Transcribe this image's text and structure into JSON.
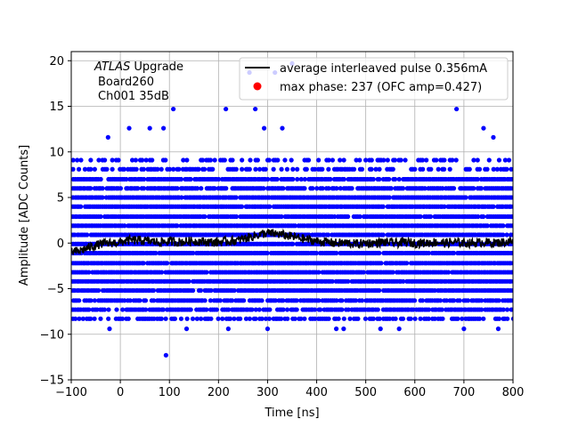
{
  "chart_data": {
    "type": "scatter",
    "xlabel": "Time [ns]",
    "ylabel": "Amplitude [ADC Counts]",
    "xlim": [
      -100,
      800
    ],
    "ylim": [
      -15,
      21
    ],
    "xticks": [
      -100,
      0,
      100,
      200,
      300,
      400,
      500,
      600,
      700,
      800
    ],
    "yticks": [
      -15,
      -10,
      -5,
      0,
      5,
      10,
      15,
      20
    ],
    "grid": true,
    "legend_position": "top-right",
    "annotation": {
      "italic": "ATLAS",
      "line1_rest": " Upgrade",
      "line2": "Board260",
      "line3": "Ch001 35dB"
    },
    "legend": [
      {
        "label": "average interleaved pulse 0.356mA",
        "marker": "line",
        "color": "#000000"
      },
      {
        "label": "max phase: 237 (OFC amp=0.427)",
        "marker": "dot",
        "color": "#ff0000"
      }
    ],
    "scatter_series": {
      "color": "#0000ff",
      "x_start": -100,
      "x_end": 800,
      "x_step": 4,
      "adc_levels": [
        -8.3,
        -7.3,
        -6.3,
        -5.2,
        -4.2,
        -3.2,
        -2.2,
        -1.1,
        -0.1,
        0.9,
        1.9,
        2.9,
        4.0,
        5.0,
        6.0,
        7.0,
        8.1,
        9.1
      ],
      "outliers": [
        {
          "x": 93,
          "y": -12.3
        },
        {
          "x": 60,
          "y": 12.6
        },
        {
          "x": -25,
          "y": 11.6
        },
        {
          "x": 108,
          "y": 14.7
        },
        {
          "x": 88,
          "y": 12.6
        },
        {
          "x": 215,
          "y": 14.7
        },
        {
          "x": 275,
          "y": 14.7
        },
        {
          "x": 685,
          "y": 14.7
        },
        {
          "x": 293,
          "y": 12.6
        },
        {
          "x": 315,
          "y": 18.7
        },
        {
          "x": 350,
          "y": 19.7
        },
        {
          "x": 263,
          "y": 18.7
        },
        {
          "x": 18,
          "y": 12.6
        },
        {
          "x": 330,
          "y": 12.6
        },
        {
          "x": 740,
          "y": 12.6
        },
        {
          "x": 760,
          "y": 11.6
        },
        {
          "x": 300,
          "y": -9.4
        },
        {
          "x": 135,
          "y": -9.4
        },
        {
          "x": -22,
          "y": -9.4
        },
        {
          "x": 455,
          "y": -9.4
        },
        {
          "x": 530,
          "y": -9.4
        },
        {
          "x": 568,
          "y": -9.4
        },
        {
          "x": 700,
          "y": -9.4
        },
        {
          "x": 770,
          "y": -9.4
        },
        {
          "x": 220,
          "y": -9.4
        },
        {
          "x": 440,
          "y": -9.4
        }
      ]
    },
    "line_series": {
      "color": "#000000",
      "x": [
        -100,
        -80,
        -60,
        -40,
        -20,
        0,
        20,
        40,
        60,
        80,
        100,
        120,
        140,
        160,
        180,
        200,
        220,
        240,
        260,
        280,
        300,
        320,
        340,
        360,
        380,
        400,
        420,
        440,
        460,
        480,
        500,
        520,
        540,
        560,
        580,
        600,
        620,
        640,
        660,
        680,
        700,
        720,
        740,
        760,
        780,
        800
      ],
      "y": [
        -1.0,
        -0.8,
        -0.4,
        -0.1,
        0.0,
        0.1,
        0.3,
        0.3,
        0.2,
        0.1,
        0.2,
        0.1,
        0.2,
        0.2,
        0.1,
        0.1,
        0.2,
        0.3,
        0.6,
        0.9,
        1.1,
        1.0,
        0.8,
        0.6,
        0.4,
        0.2,
        0.1,
        0.0,
        0.0,
        -0.1,
        0.0,
        0.0,
        0.1,
        0.0,
        0.1,
        0.0,
        0.0,
        0.1,
        0.0,
        0.1,
        0.0,
        0.0,
        0.1,
        0.0,
        0.1,
        0.2
      ]
    },
    "max_phase_marker": {
      "x": 237,
      "y": 0.427,
      "color": "#ff0000"
    }
  }
}
